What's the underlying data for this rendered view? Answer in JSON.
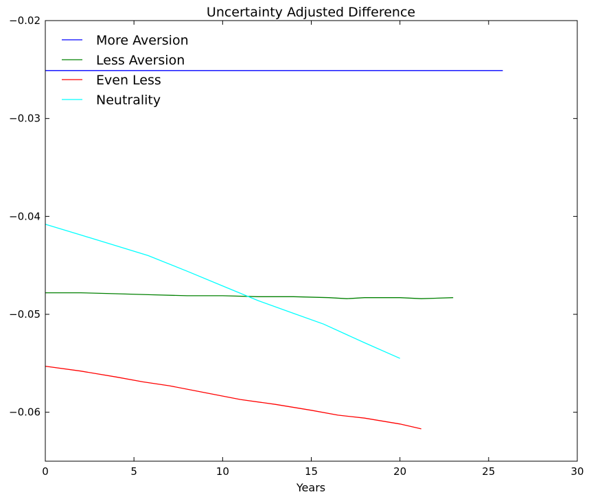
{
  "chart_data": {
    "type": "line",
    "title": "Uncertainty Adjusted Difference",
    "xlabel": "Years",
    "ylabel": "",
    "xlim": [
      0,
      30
    ],
    "ylim": [
      -0.065,
      -0.02
    ],
    "xticks": [
      "0",
      "5",
      "10",
      "15",
      "20",
      "25",
      "30"
    ],
    "yticks": [
      "−0.02",
      "−0.03",
      "−0.04",
      "−0.05",
      "−0.06"
    ],
    "grid": false,
    "legend_position": "top-left",
    "series": [
      {
        "name": "More Aversion",
        "color": "#0000ff",
        "x": [
          0,
          25.8
        ],
        "y": [
          -0.0251,
          -0.0251
        ]
      },
      {
        "name": "Less Aversion",
        "color": "#008000",
        "x": [
          0,
          2,
          4,
          6,
          8,
          10,
          12,
          14,
          16,
          17,
          18,
          20,
          21.2,
          23
        ],
        "y": [
          -0.0478,
          -0.0478,
          -0.0479,
          -0.048,
          -0.0481,
          -0.0481,
          -0.0482,
          -0.0482,
          -0.0483,
          -0.0484,
          -0.0483,
          -0.0483,
          -0.0484,
          -0.0483
        ]
      },
      {
        "name": "Even Less",
        "color": "#ff0000",
        "x": [
          0,
          2,
          4,
          5.5,
          7,
          9,
          11,
          13,
          15,
          16.5,
          18,
          20,
          21.2
        ],
        "y": [
          -0.0553,
          -0.0558,
          -0.0564,
          -0.0569,
          -0.0573,
          -0.058,
          -0.0587,
          -0.0592,
          -0.0598,
          -0.0603,
          -0.0606,
          -0.0612,
          -0.0617
        ]
      },
      {
        "name": "Neutrality",
        "color": "#00ffff",
        "x": [
          0,
          2,
          4,
          5.8,
          8,
          10,
          12,
          14,
          15.7,
          18,
          20
        ],
        "y": [
          -0.0408,
          -0.0419,
          -0.043,
          -0.044,
          -0.0456,
          -0.0471,
          -0.0486,
          -0.0499,
          -0.051,
          -0.0529,
          -0.0545
        ]
      }
    ]
  }
}
